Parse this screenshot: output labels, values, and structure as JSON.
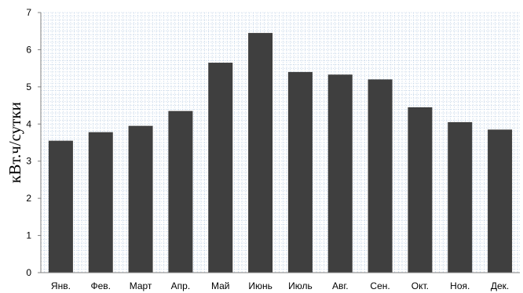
{
  "chart_data": {
    "type": "bar",
    "categories": [
      "Янв.",
      "Фев.",
      "Март",
      "Апр.",
      "Май",
      "Июнь",
      "Июль",
      "Авг.",
      "Сен.",
      "Окт.",
      "Ноя.",
      "Дек."
    ],
    "values": [
      3.55,
      3.78,
      3.95,
      4.35,
      5.65,
      6.45,
      5.4,
      5.33,
      5.2,
      4.45,
      4.05,
      3.85
    ],
    "title": "",
    "xlabel": "",
    "ylabel": "кВт.ч/сутки",
    "ylim": [
      0,
      7
    ],
    "yticks": [
      "0",
      "1",
      "2",
      "3",
      "4",
      "5",
      "6",
      "7"
    ],
    "grid": true,
    "bar_color": "#3f3f3f",
    "grid_color": "#b9cde3"
  }
}
